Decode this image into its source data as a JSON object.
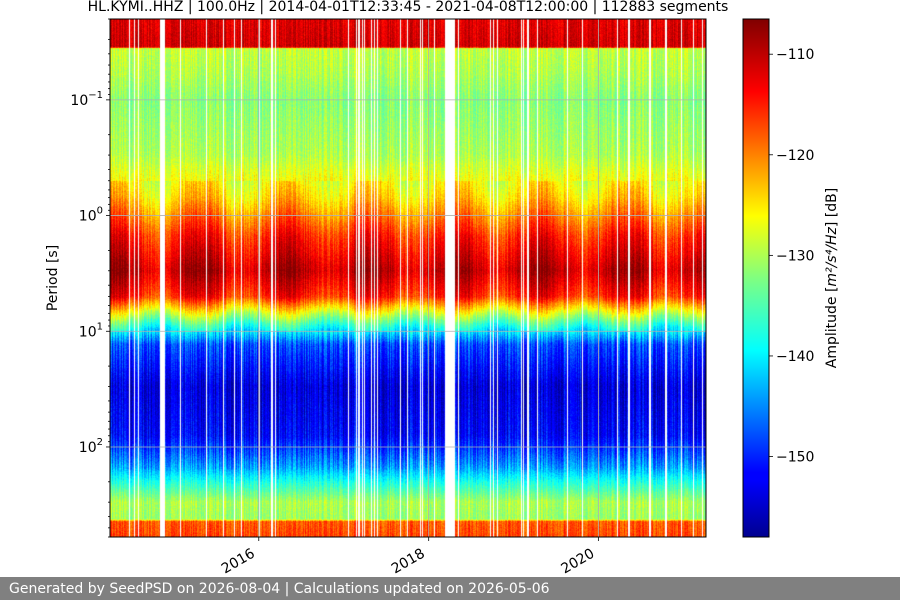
{
  "chart_data": {
    "type": "heatmap",
    "title": "HL.KYMI..HHZ | 100.0Hz | 2014-04-01T12:33:45 - 2021-04-08T12:00:00 | 112883 segments",
    "ylabel": "Period [s]",
    "y_scale": "log",
    "y_inverted": true,
    "x_start": "2014-04-01",
    "x_end": "2021-04-08",
    "ylim": [
      0.02,
      600
    ],
    "x_ticks": [
      {
        "date": "2016-01-01",
        "label": "2016"
      },
      {
        "date": "2018-01-01",
        "label": "2018"
      },
      {
        "date": "2020-01-01",
        "label": "2020"
      }
    ],
    "y_ticks": [
      {
        "value": 0.1,
        "base": "10",
        "exp": "−1"
      },
      {
        "value": 1,
        "base": "10",
        "exp": "0"
      },
      {
        "value": 10,
        "base": "10",
        "exp": "1"
      },
      {
        "value": 100,
        "base": "10",
        "exp": "2"
      }
    ],
    "grid": true,
    "data_gaps": [
      {
        "start": "2014-11-01",
        "end": "2014-11-20"
      },
      {
        "start": "2018-03-10",
        "end": "2018-04-20"
      }
    ],
    "amplitude_profile": [
      {
        "period": 0.02,
        "db": -112
      },
      {
        "period": 0.035,
        "db": -111
      },
      {
        "period": 0.036,
        "db": -129
      },
      {
        "period": 0.06,
        "db": -130
      },
      {
        "period": 0.1,
        "db": -132
      },
      {
        "period": 0.3,
        "db": -130
      },
      {
        "period": 0.7,
        "db": -124
      },
      {
        "period": 1.5,
        "db": -115
      },
      {
        "period": 3,
        "db": -110
      },
      {
        "period": 5,
        "db": -115
      },
      {
        "period": 7,
        "db": -128
      },
      {
        "period": 9,
        "db": -137
      },
      {
        "period": 13,
        "db": -148
      },
      {
        "period": 30,
        "db": -154
      },
      {
        "period": 80,
        "db": -152
      },
      {
        "period": 150,
        "db": -144
      },
      {
        "period": 200,
        "db": -138
      },
      {
        "period": 300,
        "db": -130
      },
      {
        "period": 420,
        "db": -131
      },
      {
        "period": 440,
        "db": -118
      },
      {
        "period": 600,
        "db": -117
      }
    ],
    "colorbar": {
      "label_prefix": "Amplitude [",
      "label_math": "m²/s⁴/Hz",
      "label_suffix": "] [dB]",
      "colormap": "jet",
      "range": [
        -158,
        -106.5
      ],
      "ticks": [
        -110,
        -120,
        -130,
        -140,
        -150
      ]
    }
  },
  "footer": {
    "text": "Generated by SeedPSD on 2026-08-04 | Calculations updated on 2026-05-06"
  },
  "colors": {
    "footer_background": "#808080",
    "footer_text": "#ffffff",
    "grid": "#b0b0b0"
  }
}
